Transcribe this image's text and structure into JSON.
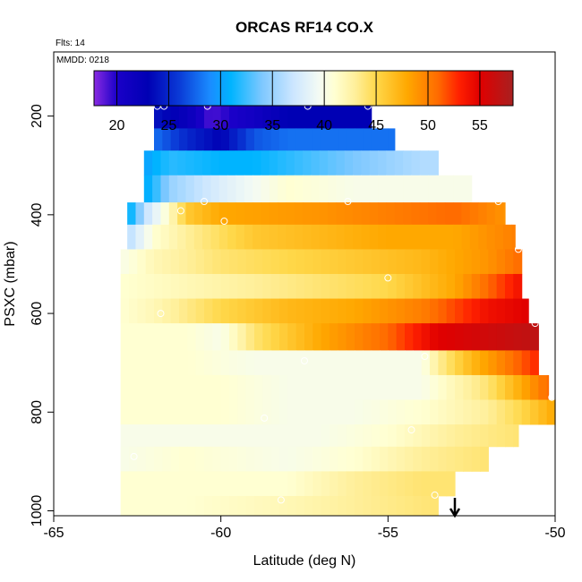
{
  "chart_data": {
    "type": "heatmap",
    "title": "ORCAS RF14 CO.X",
    "flights_label": "Flts: 14",
    "date_label": "MMDD: 0218",
    "xlabel": "Latitude (deg N)",
    "ylabel": "PSXC (mbar)",
    "xlim": [
      -65,
      -50
    ],
    "ylim": [
      1010,
      70
    ],
    "x_ticks": [
      -65,
      -60,
      -55,
      -50
    ],
    "y_ticks": [
      200,
      400,
      600,
      800,
      1000
    ],
    "colorbar": {
      "range": [
        17.8,
        58.2
      ],
      "ticks": [
        20,
        25,
        30,
        35,
        40,
        45,
        50,
        55
      ],
      "stops": [
        {
          "v": 17.8,
          "c": "#8a2be2"
        },
        {
          "v": 20.0,
          "c": "#1a00c8"
        },
        {
          "v": 23.0,
          "c": "#0000b4"
        },
        {
          "v": 26.0,
          "c": "#0a3ad6"
        },
        {
          "v": 29.0,
          "c": "#1a8cff"
        },
        {
          "v": 31.0,
          "c": "#00b4ff"
        },
        {
          "v": 34.0,
          "c": "#7ec8ff"
        },
        {
          "v": 37.0,
          "c": "#cce6ff"
        },
        {
          "v": 39.5,
          "c": "#f4fbf4"
        },
        {
          "v": 41.0,
          "c": "#ffffd2"
        },
        {
          "v": 43.0,
          "c": "#ffef9a"
        },
        {
          "v": 45.0,
          "c": "#ffd84a"
        },
        {
          "v": 48.0,
          "c": "#ffa800"
        },
        {
          "v": 51.0,
          "c": "#ff6a00"
        },
        {
          "v": 53.0,
          "c": "#ff2000"
        },
        {
          "v": 55.0,
          "c": "#e00000"
        },
        {
          "v": 58.2,
          "c": "#a82020"
        }
      ]
    },
    "layers": [
      {
        "p_top": 175,
        "p_bot": 225,
        "lat_start": -62,
        "lat_end": -55.5,
        "anchors": [
          [
            -62,
            24
          ],
          [
            -61,
            22
          ],
          [
            -60.3,
            19
          ],
          [
            -59,
            21
          ],
          [
            -58,
            23
          ],
          [
            -57,
            23
          ],
          [
            -55.5,
            23
          ]
        ]
      },
      {
        "p_top": 225,
        "p_bot": 270,
        "lat_start": -62,
        "lat_end": -54.8,
        "anchors": [
          [
            -62,
            28
          ],
          [
            -61,
            25
          ],
          [
            -60,
            23
          ],
          [
            -59,
            27
          ],
          [
            -58,
            28
          ],
          [
            -57,
            28
          ],
          [
            -56,
            28
          ],
          [
            -54.8,
            28
          ]
        ]
      },
      {
        "p_top": 270,
        "p_bot": 320,
        "lat_start": -62.3,
        "lat_end": -53.5,
        "anchors": [
          [
            -62.3,
            30
          ],
          [
            -61.5,
            32
          ],
          [
            -60,
            31
          ],
          [
            -59,
            31
          ],
          [
            -58,
            32
          ],
          [
            -57,
            33
          ],
          [
            -56,
            34
          ],
          [
            -55,
            35
          ],
          [
            -54,
            36
          ],
          [
            -53.5,
            36
          ]
        ]
      },
      {
        "p_top": 320,
        "p_bot": 375,
        "lat_start": -62.3,
        "lat_end": -52.5,
        "anchors": [
          [
            -62.3,
            30
          ],
          [
            -61.5,
            35
          ],
          [
            -60,
            38
          ],
          [
            -58,
            41
          ],
          [
            -56,
            40
          ],
          [
            -54,
            40
          ],
          [
            -52.5,
            40
          ]
        ]
      },
      {
        "p_top": 375,
        "p_bot": 420,
        "lat_start": -62.8,
        "lat_end": -51.5,
        "anchors": [
          [
            -62.8,
            30
          ],
          [
            -62.2,
            37
          ],
          [
            -61.6,
            41
          ],
          [
            -61,
            46
          ],
          [
            -60,
            48
          ],
          [
            -57,
            49
          ],
          [
            -55,
            50
          ],
          [
            -53,
            51
          ],
          [
            -51.5,
            49
          ]
        ]
      },
      {
        "p_top": 420,
        "p_bot": 470,
        "lat_start": -62.8,
        "lat_end": -51.2,
        "anchors": [
          [
            -62.8,
            36
          ],
          [
            -62,
            41
          ],
          [
            -61,
            43
          ],
          [
            -59,
            46
          ],
          [
            -57,
            47
          ],
          [
            -55,
            48
          ],
          [
            -53,
            48
          ],
          [
            -51.2,
            50
          ]
        ]
      },
      {
        "p_top": 470,
        "p_bot": 520,
        "lat_start": -63,
        "lat_end": -51,
        "anchors": [
          [
            -63,
            40
          ],
          [
            -62,
            42
          ],
          [
            -60,
            44
          ],
          [
            -58,
            45
          ],
          [
            -56,
            46
          ],
          [
            -54,
            47
          ],
          [
            -52,
            49
          ],
          [
            -51,
            51
          ]
        ]
      },
      {
        "p_top": 520,
        "p_bot": 570,
        "lat_start": -63,
        "lat_end": -51,
        "anchors": [
          [
            -63,
            41
          ],
          [
            -61,
            42
          ],
          [
            -59,
            43
          ],
          [
            -57,
            44
          ],
          [
            -55,
            45
          ],
          [
            -53,
            48
          ],
          [
            -52,
            51
          ],
          [
            -51,
            54
          ]
        ]
      },
      {
        "p_top": 570,
        "p_bot": 620,
        "lat_start": -63,
        "lat_end": -50.8,
        "anchors": [
          [
            -63,
            41
          ],
          [
            -62,
            42
          ],
          [
            -60,
            45
          ],
          [
            -58,
            47
          ],
          [
            -56,
            48
          ],
          [
            -54,
            50
          ],
          [
            -53,
            52
          ],
          [
            -52,
            54
          ],
          [
            -50.8,
            55
          ]
        ]
      },
      {
        "p_top": 620,
        "p_bot": 675,
        "lat_start": -63,
        "lat_end": -50.5,
        "anchors": [
          [
            -63,
            41
          ],
          [
            -61,
            41
          ],
          [
            -60,
            40
          ],
          [
            -59,
            44
          ],
          [
            -57,
            48
          ],
          [
            -55,
            51
          ],
          [
            -53.5,
            55
          ],
          [
            -52,
            56
          ],
          [
            -50.5,
            57
          ]
        ]
      },
      {
        "p_top": 675,
        "p_bot": 725,
        "lat_start": -63,
        "lat_end": -50.5,
        "anchors": [
          [
            -63,
            41
          ],
          [
            -61,
            41
          ],
          [
            -59,
            40
          ],
          [
            -57,
            40
          ],
          [
            -55,
            40
          ],
          [
            -54,
            40
          ],
          [
            -53.5,
            43
          ],
          [
            -52.5,
            47
          ],
          [
            -51.5,
            50
          ],
          [
            -50.5,
            53
          ]
        ]
      },
      {
        "p_top": 725,
        "p_bot": 775,
        "lat_start": -63,
        "lat_end": -50.2,
        "anchors": [
          [
            -63,
            41
          ],
          [
            -60,
            41
          ],
          [
            -58,
            40
          ],
          [
            -56,
            40
          ],
          [
            -54,
            40
          ],
          [
            -53,
            42
          ],
          [
            -52,
            44
          ],
          [
            -50.2,
            51
          ]
        ]
      },
      {
        "p_top": 775,
        "p_bot": 825,
        "lat_start": -63,
        "lat_end": -50,
        "anchors": [
          [
            -63,
            41
          ],
          [
            -60,
            41
          ],
          [
            -58,
            40
          ],
          [
            -56,
            40
          ],
          [
            -54,
            41
          ],
          [
            -52,
            43
          ],
          [
            -51,
            45
          ],
          [
            -50,
            48
          ]
        ]
      },
      {
        "p_top": 825,
        "p_bot": 870,
        "lat_start": -63,
        "lat_end": -51.1,
        "anchors": [
          [
            -63,
            40
          ],
          [
            -61,
            40
          ],
          [
            -59,
            40
          ],
          [
            -57,
            40
          ],
          [
            -55,
            41
          ],
          [
            -53,
            43
          ],
          [
            -51.1,
            44
          ]
        ]
      },
      {
        "p_top": 870,
        "p_bot": 920,
        "lat_start": -63,
        "lat_end": -52,
        "anchors": [
          [
            -63,
            40
          ],
          [
            -61,
            41
          ],
          [
            -58,
            40
          ],
          [
            -56,
            41
          ],
          [
            -54,
            43
          ],
          [
            -52,
            44
          ]
        ]
      },
      {
        "p_top": 920,
        "p_bot": 970,
        "lat_start": -63,
        "lat_end": -53,
        "anchors": [
          [
            -63,
            41
          ],
          [
            -61,
            41
          ],
          [
            -58,
            41
          ],
          [
            -56,
            43
          ],
          [
            -54,
            44
          ],
          [
            -53,
            44
          ]
        ]
      },
      {
        "p_top": 970,
        "p_bot": 1010,
        "lat_start": -63,
        "lat_end": -53.5,
        "anchors": [
          [
            -63,
            41
          ],
          [
            -61,
            41
          ],
          [
            -58,
            42
          ],
          [
            -56,
            43
          ],
          [
            -53.5,
            44
          ]
        ]
      }
    ],
    "observation_points": [
      {
        "lat": -61.9,
        "p": 180
      },
      {
        "lat": -61.7,
        "p": 180
      },
      {
        "lat": -60.4,
        "p": 180
      },
      {
        "lat": -57.4,
        "p": 180
      },
      {
        "lat": -55.6,
        "p": 180
      },
      {
        "lat": -61.2,
        "p": 392
      },
      {
        "lat": -60.5,
        "p": 373
      },
      {
        "lat": -59.9,
        "p": 413
      },
      {
        "lat": -56.2,
        "p": 373
      },
      {
        "lat": -51.7,
        "p": 373
      },
      {
        "lat": -51.1,
        "p": 470
      },
      {
        "lat": -55.0,
        "p": 528
      },
      {
        "lat": -61.8,
        "p": 600
      },
      {
        "lat": -50.6,
        "p": 620
      },
      {
        "lat": -57.5,
        "p": 696
      },
      {
        "lat": -53.9,
        "p": 687
      },
      {
        "lat": -50.1,
        "p": 770
      },
      {
        "lat": -58.7,
        "p": 812
      },
      {
        "lat": -54.3,
        "p": 836
      },
      {
        "lat": -62.6,
        "p": 890
      },
      {
        "lat": -58.2,
        "p": 978
      },
      {
        "lat": -53.6,
        "p": 968
      }
    ],
    "marker": {
      "lat": -53.0,
      "symbol": "arrow-down"
    }
  }
}
